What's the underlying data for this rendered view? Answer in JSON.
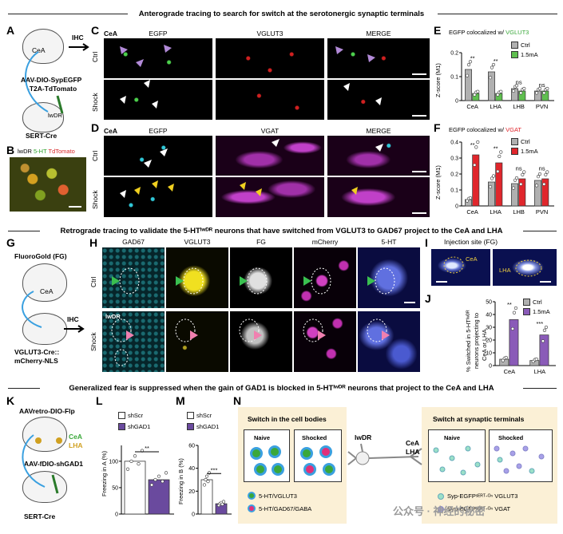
{
  "section_titles": {
    "top": "Anterograde tracing to search for switch at the serotonergic synaptic terminals",
    "middle": "Retrograde tracing to validate the 5-HTᴵʷᴰᴿ neurons that have switched from VGLUT3 to GAD67 project to the CeA and LHA",
    "bottom": "Generalized fear is suppressed when the gain of GAD1 is blocked in 5-HTᴵʷᴰᴿ neurons that project to the CeA and LHA"
  },
  "panel_letters": [
    "A",
    "B",
    "C",
    "D",
    "E",
    "F",
    "G",
    "H",
    "I",
    "J",
    "K",
    "L",
    "M",
    "N"
  ],
  "panelA": {
    "region_top": "CeA",
    "virus_line1": "AAV-DIO-SypEGFP",
    "virus_line2": "-T2A-TdTomato",
    "region_bottom": "lwDR",
    "mouse_line": "SERT-Cre",
    "arrow_label": "IHC"
  },
  "panelB": {
    "label_a": "lwDR",
    "label_b": "5-HT",
    "label_c": "TdTomato"
  },
  "panelC": {
    "region": "CeA",
    "columns": [
      "EGFP",
      "VGLUT3",
      "MERGE"
    ],
    "rows": [
      "Ctrl",
      "Shock"
    ]
  },
  "panelD": {
    "region": "CeA",
    "columns": [
      "EGFP",
      "VGAT",
      "MERGE"
    ],
    "rows": [
      "Ctrl",
      "Shock"
    ]
  },
  "panelE": {
    "title_prefix": "EGFP colocalized w/ ",
    "title_marker": "VGLUT3",
    "ylabel": "Z-score (M1)",
    "legend": [
      "Ctrl",
      "1.5mA"
    ],
    "significance": [
      "**",
      "**",
      "ns",
      "ns"
    ]
  },
  "panelF": {
    "title_prefix": "EGFP colocalized w/ ",
    "title_marker": "VGAT",
    "ylabel": "Z-score (M1)",
    "legend": [
      "Ctrl",
      "1.5mA"
    ],
    "significance": [
      "**",
      "**",
      "ns",
      "ns"
    ]
  },
  "panelG": {
    "tracer": "FluoroGold (FG)",
    "region_top": "CeA",
    "mouse_line1": "VGLUT3-Cre::",
    "mouse_line2": "mCherry-NLS",
    "arrow_label": "IHC"
  },
  "panelH": {
    "columns": [
      "GAD67",
      "VGLUT3",
      "FG",
      "mCherry",
      "5-HT"
    ],
    "rows": [
      "Ctrl",
      "Shock"
    ],
    "region_tag": "lwDR"
  },
  "panelI": {
    "title": "Injection site (FG)",
    "labels": [
      "CeA",
      "LHA"
    ]
  },
  "panelJ": {
    "ylabel_line1": "% Switched in 5-HTᴵʷᴰᴿ",
    "ylabel_line2": "neurons projecting to",
    "ylabel_line3": "CeA or LHA",
    "legend": [
      "Ctrl",
      "1.5mA"
    ],
    "significance": [
      "**",
      "***"
    ],
    "yticks": [
      "0",
      "10",
      "20",
      "30",
      "40",
      "50"
    ]
  },
  "panelK": {
    "virus_top": "AAVretro-DIO-Flp",
    "region_a": "CeA",
    "region_b": "LHA",
    "virus_bottom": "AAV-fDIO-shGAD1",
    "mouse_line": "SERT-Cre"
  },
  "panelL": {
    "legend": [
      "shScr",
      "shGAD1"
    ],
    "ylabel": "Freezing in A (%)",
    "yticks": [
      "0",
      "50",
      "100"
    ],
    "significance": "**"
  },
  "panelM": {
    "legend": [
      "shScr",
      "shGAD1"
    ],
    "ylabel": "Freezing in B (%)",
    "yticks": [
      "0",
      "20",
      "40",
      "60"
    ],
    "significance": "***"
  },
  "panelN": {
    "left_title": "Switch in the cell bodies",
    "naive": "Naive",
    "shocked": "Shocked",
    "legend_1": "5-HT/VGLUT3",
    "legend_2": "5-HT/GAD67/GABA",
    "region_center": "lwDR",
    "target_1": "CeA",
    "target_2": "LHA",
    "right_title": "Switch at synaptic terminals",
    "legend_3": "Syp-EGFPˢᴱᴿᵀ-ᴼⁿ VGLUT3",
    "legend_4": "Syp-EGFPˢᴱᴿᵀ-ᴼⁿ VGAT"
  },
  "watermark": "公众号 · 神经的秘密",
  "chart_data": [
    {
      "id": "E",
      "type": "bar",
      "categories": [
        "CeA",
        "LHA",
        "LHB",
        "PVN"
      ],
      "series": [
        {
          "name": "Ctrl",
          "values": [
            0.13,
            0.12,
            0.05,
            0.04
          ]
        },
        {
          "name": "1.5mA",
          "values": [
            0.03,
            0.03,
            0.04,
            0.04
          ]
        }
      ],
      "ylim": [
        0,
        0.2
      ],
      "yticks": [
        "0",
        "0.1",
        "0.2"
      ],
      "colors": {
        "Ctrl": "#b0b0b0",
        "1.5mA": "#5fbf4f"
      }
    },
    {
      "id": "F",
      "type": "bar",
      "categories": [
        "CeA",
        "LHA",
        "LHB",
        "PVN"
      ],
      "series": [
        {
          "name": "Ctrl",
          "values": [
            0.04,
            0.15,
            0.14,
            0.16
          ]
        },
        {
          "name": "1.5mA",
          "values": [
            0.32,
            0.27,
            0.17,
            0.17
          ]
        }
      ],
      "ylim": [
        0,
        0.4
      ],
      "yticks": [
        "0",
        "0.1",
        "0.2",
        "0.3",
        "0.4"
      ],
      "colors": {
        "Ctrl": "#b0b0b0",
        "1.5mA": "#e0262c"
      }
    },
    {
      "id": "J",
      "type": "bar",
      "categories": [
        "CeA",
        "LHA"
      ],
      "series": [
        {
          "name": "Ctrl",
          "values": [
            5,
            4
          ]
        },
        {
          "name": "1.5mA",
          "values": [
            36,
            24
          ]
        }
      ],
      "ylim": [
        0,
        50
      ],
      "colors": {
        "Ctrl": "#b0b0b0",
        "1.5mA": "#8a5bb8"
      }
    },
    {
      "id": "L",
      "type": "bar",
      "categories": [
        "shScr",
        "shGAD1"
      ],
      "values": [
        100,
        65
      ],
      "ylim": [
        0,
        130
      ],
      "colors": {
        "shScr": "#ffffff",
        "shGAD1": "#6a4a9e"
      }
    },
    {
      "id": "M",
      "type": "bar",
      "categories": [
        "shScr",
        "shGAD1"
      ],
      "values": [
        30,
        9
      ],
      "ylim": [
        0,
        60
      ],
      "colors": {
        "shScr": "#ffffff",
        "shGAD1": "#6a4a9e"
      }
    }
  ]
}
